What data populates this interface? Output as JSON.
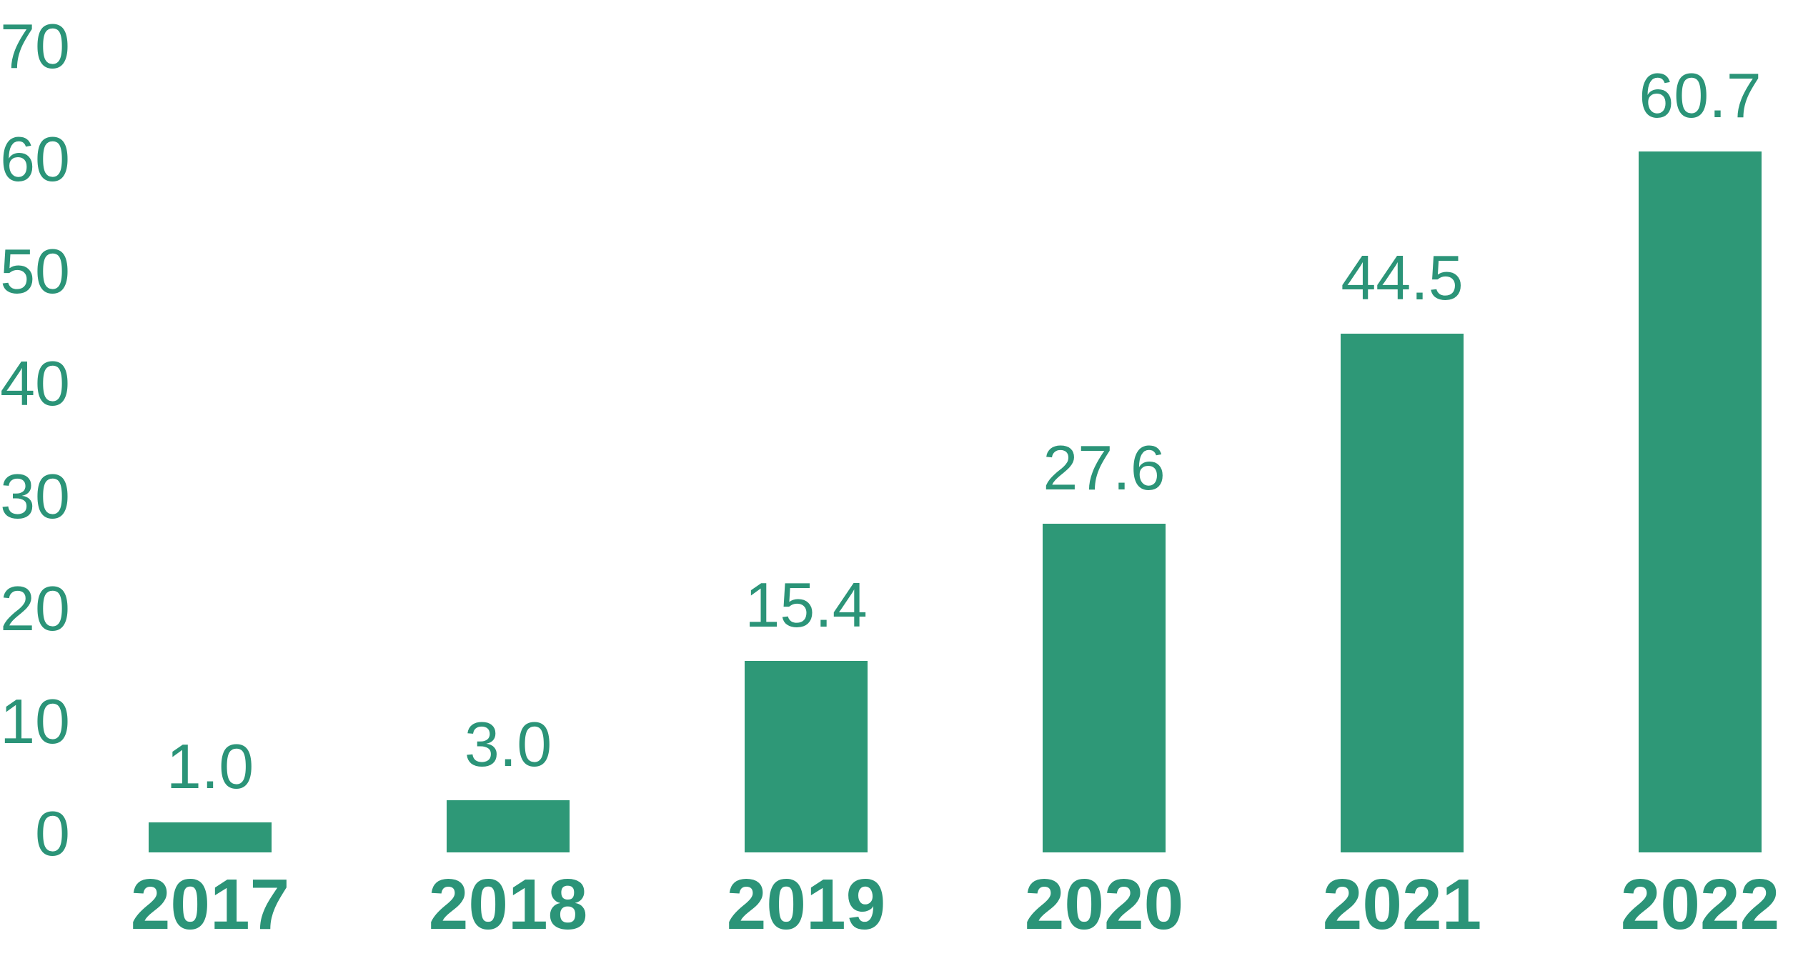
{
  "chart_data": {
    "type": "bar",
    "categories": [
      "2017",
      "2018",
      "2019",
      "2020",
      "2021",
      "2022"
    ],
    "values": [
      1.0,
      3.0,
      15.4,
      27.6,
      44.5,
      60.7
    ],
    "value_labels": [
      "1.0",
      "3.0",
      "15.4",
      "27.6",
      "44.5",
      "60.7"
    ],
    "yticks": [
      70,
      60,
      50,
      40,
      30,
      20,
      10,
      0
    ],
    "ylim": [
      0,
      70
    ],
    "grid": false,
    "legend": false,
    "bar_color": "#2E9877",
    "label_color": "#2B9478"
  }
}
